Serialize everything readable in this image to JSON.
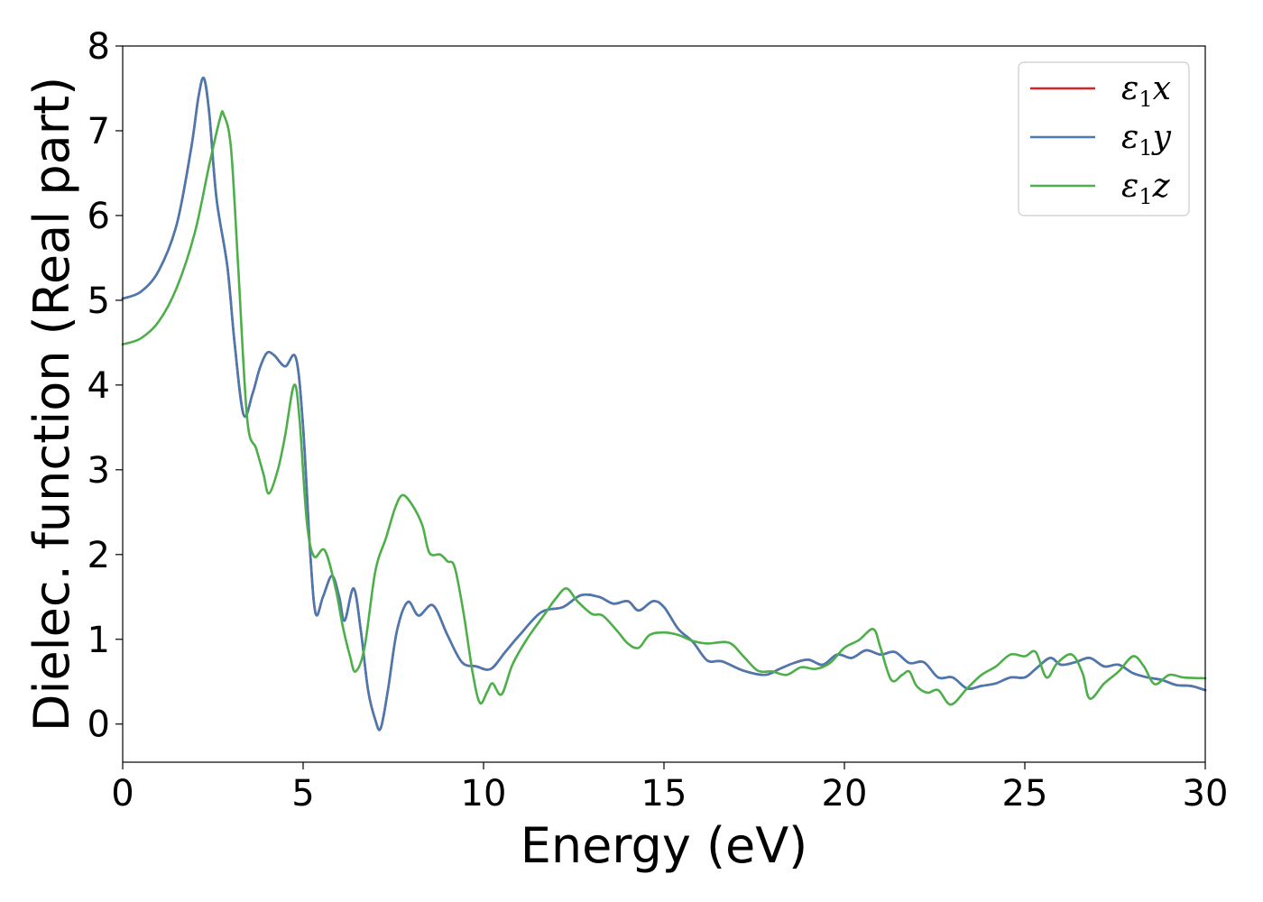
{
  "chart_data": {
    "type": "line",
    "xlabel": "Energy (eV)",
    "ylabel": "Dielec. function (Real part)",
    "xlim": [
      0,
      30
    ],
    "ylim": [
      -0.45,
      8.0
    ],
    "xticks": [
      "0",
      "5",
      "10",
      "15",
      "20",
      "25",
      "30"
    ],
    "yticks": [
      "0",
      "1",
      "2",
      "3",
      "4",
      "5",
      "6",
      "7",
      "8"
    ],
    "grid": false,
    "legend_position": "top-right",
    "legend": [
      {
        "symbol": "ε",
        "sub": "1",
        "var": "x",
        "color": "#d62728"
      },
      {
        "symbol": "ε",
        "sub": "1",
        "var": "y",
        "color": "#4a79b0"
      },
      {
        "symbol": "ε",
        "sub": "1",
        "var": "z",
        "color": "#4daf4a"
      }
    ],
    "series": [
      {
        "name": "ε1x",
        "color": "#d62728",
        "points": [
          [
            0,
            5.02
          ],
          [
            0.5,
            5.1
          ],
          [
            1.0,
            5.35
          ],
          [
            1.5,
            5.9
          ],
          [
            1.9,
            6.8
          ],
          [
            2.1,
            7.4
          ],
          [
            2.25,
            7.62
          ],
          [
            2.4,
            7.2
          ],
          [
            2.6,
            6.2
          ],
          [
            2.9,
            5.4
          ],
          [
            3.1,
            4.5
          ],
          [
            3.35,
            3.65
          ],
          [
            3.6,
            3.9
          ],
          [
            3.8,
            4.2
          ],
          [
            4.0,
            4.38
          ],
          [
            4.2,
            4.35
          ],
          [
            4.5,
            4.22
          ],
          [
            4.8,
            4.32
          ],
          [
            5.0,
            3.5
          ],
          [
            5.2,
            2.0
          ],
          [
            5.35,
            1.3
          ],
          [
            5.55,
            1.5
          ],
          [
            5.8,
            1.75
          ],
          [
            6.0,
            1.5
          ],
          [
            6.15,
            1.22
          ],
          [
            6.4,
            1.6
          ],
          [
            6.6,
            1.1
          ],
          [
            6.8,
            0.4
          ],
          [
            7.0,
            0.05
          ],
          [
            7.15,
            -0.05
          ],
          [
            7.35,
            0.4
          ],
          [
            7.6,
            1.1
          ],
          [
            7.9,
            1.44
          ],
          [
            8.2,
            1.28
          ],
          [
            8.6,
            1.4
          ],
          [
            9.0,
            1.05
          ],
          [
            9.4,
            0.73
          ],
          [
            9.8,
            0.68
          ],
          [
            10.2,
            0.65
          ],
          [
            10.6,
            0.85
          ],
          [
            11.0,
            1.05
          ],
          [
            11.6,
            1.32
          ],
          [
            12.2,
            1.38
          ],
          [
            12.7,
            1.52
          ],
          [
            13.2,
            1.5
          ],
          [
            13.6,
            1.42
          ],
          [
            14.0,
            1.45
          ],
          [
            14.3,
            1.34
          ],
          [
            14.7,
            1.45
          ],
          [
            15.0,
            1.38
          ],
          [
            15.4,
            1.12
          ],
          [
            15.8,
            0.97
          ],
          [
            16.2,
            0.75
          ],
          [
            16.6,
            0.74
          ],
          [
            17.2,
            0.63
          ],
          [
            17.8,
            0.58
          ],
          [
            18.2,
            0.65
          ],
          [
            18.6,
            0.72
          ],
          [
            19.0,
            0.76
          ],
          [
            19.4,
            0.7
          ],
          [
            19.8,
            0.82
          ],
          [
            20.2,
            0.78
          ],
          [
            20.6,
            0.87
          ],
          [
            21.0,
            0.82
          ],
          [
            21.4,
            0.85
          ],
          [
            21.8,
            0.72
          ],
          [
            22.2,
            0.73
          ],
          [
            22.6,
            0.55
          ],
          [
            23.0,
            0.55
          ],
          [
            23.4,
            0.42
          ],
          [
            23.8,
            0.45
          ],
          [
            24.2,
            0.48
          ],
          [
            24.6,
            0.55
          ],
          [
            25.0,
            0.55
          ],
          [
            25.3,
            0.65
          ],
          [
            25.7,
            0.78
          ],
          [
            26.0,
            0.7
          ],
          [
            26.4,
            0.73
          ],
          [
            26.8,
            0.78
          ],
          [
            27.2,
            0.68
          ],
          [
            27.6,
            0.7
          ],
          [
            28.0,
            0.6
          ],
          [
            28.4,
            0.55
          ],
          [
            28.8,
            0.52
          ],
          [
            29.2,
            0.46
          ],
          [
            29.6,
            0.45
          ],
          [
            30.0,
            0.4
          ]
        ]
      },
      {
        "name": "ε1y",
        "color": "#4a79b0",
        "points": [
          [
            0,
            5.02
          ],
          [
            0.5,
            5.1
          ],
          [
            1.0,
            5.35
          ],
          [
            1.5,
            5.9
          ],
          [
            1.9,
            6.8
          ],
          [
            2.1,
            7.4
          ],
          [
            2.25,
            7.62
          ],
          [
            2.4,
            7.2
          ],
          [
            2.6,
            6.2
          ],
          [
            2.9,
            5.4
          ],
          [
            3.1,
            4.5
          ],
          [
            3.35,
            3.65
          ],
          [
            3.6,
            3.9
          ],
          [
            3.8,
            4.2
          ],
          [
            4.0,
            4.38
          ],
          [
            4.2,
            4.35
          ],
          [
            4.5,
            4.22
          ],
          [
            4.8,
            4.32
          ],
          [
            5.0,
            3.5
          ],
          [
            5.2,
            2.0
          ],
          [
            5.35,
            1.3
          ],
          [
            5.55,
            1.5
          ],
          [
            5.8,
            1.75
          ],
          [
            6.0,
            1.5
          ],
          [
            6.15,
            1.22
          ],
          [
            6.4,
            1.6
          ],
          [
            6.6,
            1.1
          ],
          [
            6.8,
            0.4
          ],
          [
            7.0,
            0.05
          ],
          [
            7.15,
            -0.05
          ],
          [
            7.35,
            0.4
          ],
          [
            7.6,
            1.1
          ],
          [
            7.9,
            1.44
          ],
          [
            8.2,
            1.28
          ],
          [
            8.6,
            1.4
          ],
          [
            9.0,
            1.05
          ],
          [
            9.4,
            0.73
          ],
          [
            9.8,
            0.68
          ],
          [
            10.2,
            0.65
          ],
          [
            10.6,
            0.85
          ],
          [
            11.0,
            1.05
          ],
          [
            11.6,
            1.32
          ],
          [
            12.2,
            1.38
          ],
          [
            12.7,
            1.52
          ],
          [
            13.2,
            1.5
          ],
          [
            13.6,
            1.42
          ],
          [
            14.0,
            1.45
          ],
          [
            14.3,
            1.34
          ],
          [
            14.7,
            1.45
          ],
          [
            15.0,
            1.38
          ],
          [
            15.4,
            1.12
          ],
          [
            15.8,
            0.97
          ],
          [
            16.2,
            0.75
          ],
          [
            16.6,
            0.74
          ],
          [
            17.2,
            0.63
          ],
          [
            17.8,
            0.58
          ],
          [
            18.2,
            0.65
          ],
          [
            18.6,
            0.72
          ],
          [
            19.0,
            0.76
          ],
          [
            19.4,
            0.7
          ],
          [
            19.8,
            0.82
          ],
          [
            20.2,
            0.78
          ],
          [
            20.6,
            0.87
          ],
          [
            21.0,
            0.82
          ],
          [
            21.4,
            0.85
          ],
          [
            21.8,
            0.72
          ],
          [
            22.2,
            0.73
          ],
          [
            22.6,
            0.55
          ],
          [
            23.0,
            0.55
          ],
          [
            23.4,
            0.42
          ],
          [
            23.8,
            0.45
          ],
          [
            24.2,
            0.48
          ],
          [
            24.6,
            0.55
          ],
          [
            25.0,
            0.55
          ],
          [
            25.3,
            0.65
          ],
          [
            25.7,
            0.78
          ],
          [
            26.0,
            0.7
          ],
          [
            26.4,
            0.73
          ],
          [
            26.8,
            0.78
          ],
          [
            27.2,
            0.68
          ],
          [
            27.6,
            0.7
          ],
          [
            28.0,
            0.6
          ],
          [
            28.4,
            0.55
          ],
          [
            28.8,
            0.52
          ],
          [
            29.2,
            0.46
          ],
          [
            29.6,
            0.45
          ],
          [
            30.0,
            0.4
          ]
        ]
      },
      {
        "name": "ε1z",
        "color": "#4daf4a",
        "points": [
          [
            0,
            4.48
          ],
          [
            0.5,
            4.55
          ],
          [
            1.0,
            4.75
          ],
          [
            1.5,
            5.15
          ],
          [
            2.0,
            5.8
          ],
          [
            2.4,
            6.6
          ],
          [
            2.7,
            7.15
          ],
          [
            2.8,
            7.19
          ],
          [
            3.0,
            6.8
          ],
          [
            3.2,
            5.4
          ],
          [
            3.45,
            3.6
          ],
          [
            3.7,
            3.25
          ],
          [
            3.9,
            2.95
          ],
          [
            4.05,
            2.72
          ],
          [
            4.3,
            3.0
          ],
          [
            4.5,
            3.4
          ],
          [
            4.75,
            4.0
          ],
          [
            4.9,
            3.6
          ],
          [
            5.1,
            2.4
          ],
          [
            5.3,
            1.98
          ],
          [
            5.6,
            2.05
          ],
          [
            5.9,
            1.6
          ],
          [
            6.1,
            1.15
          ],
          [
            6.3,
            0.8
          ],
          [
            6.45,
            0.62
          ],
          [
            6.7,
            0.9
          ],
          [
            7.0,
            1.8
          ],
          [
            7.3,
            2.2
          ],
          [
            7.55,
            2.55
          ],
          [
            7.75,
            2.7
          ],
          [
            8.0,
            2.6
          ],
          [
            8.3,
            2.35
          ],
          [
            8.5,
            2.02
          ],
          [
            8.8,
            2.0
          ],
          [
            9.0,
            1.92
          ],
          [
            9.2,
            1.85
          ],
          [
            9.45,
            1.3
          ],
          [
            9.7,
            0.6
          ],
          [
            9.9,
            0.25
          ],
          [
            10.1,
            0.38
          ],
          [
            10.25,
            0.48
          ],
          [
            10.5,
            0.35
          ],
          [
            10.8,
            0.7
          ],
          [
            11.2,
            1.0
          ],
          [
            11.7,
            1.3
          ],
          [
            12.0,
            1.48
          ],
          [
            12.3,
            1.6
          ],
          [
            12.6,
            1.45
          ],
          [
            13.0,
            1.3
          ],
          [
            13.3,
            1.28
          ],
          [
            13.7,
            1.1
          ],
          [
            14.0,
            0.95
          ],
          [
            14.3,
            0.9
          ],
          [
            14.6,
            1.05
          ],
          [
            15.0,
            1.08
          ],
          [
            15.4,
            1.05
          ],
          [
            15.8,
            0.98
          ],
          [
            16.2,
            0.95
          ],
          [
            16.8,
            0.96
          ],
          [
            17.2,
            0.8
          ],
          [
            17.6,
            0.63
          ],
          [
            18.0,
            0.62
          ],
          [
            18.4,
            0.58
          ],
          [
            18.8,
            0.67
          ],
          [
            19.2,
            0.65
          ],
          [
            19.6,
            0.72
          ],
          [
            20.0,
            0.9
          ],
          [
            20.4,
            0.99
          ],
          [
            20.8,
            1.12
          ],
          [
            21.0,
            0.9
          ],
          [
            21.3,
            0.52
          ],
          [
            21.6,
            0.58
          ],
          [
            21.8,
            0.62
          ],
          [
            22.0,
            0.45
          ],
          [
            22.3,
            0.37
          ],
          [
            22.6,
            0.4
          ],
          [
            22.95,
            0.23
          ],
          [
            23.4,
            0.42
          ],
          [
            23.8,
            0.58
          ],
          [
            24.2,
            0.68
          ],
          [
            24.6,
            0.82
          ],
          [
            25.0,
            0.8
          ],
          [
            25.3,
            0.85
          ],
          [
            25.6,
            0.55
          ],
          [
            25.9,
            0.72
          ],
          [
            26.3,
            0.82
          ],
          [
            26.6,
            0.6
          ],
          [
            26.8,
            0.3
          ],
          [
            27.2,
            0.48
          ],
          [
            27.6,
            0.62
          ],
          [
            28.0,
            0.8
          ],
          [
            28.3,
            0.68
          ],
          [
            28.6,
            0.47
          ],
          [
            29.0,
            0.58
          ],
          [
            29.4,
            0.55
          ],
          [
            30.0,
            0.54
          ]
        ]
      }
    ]
  }
}
